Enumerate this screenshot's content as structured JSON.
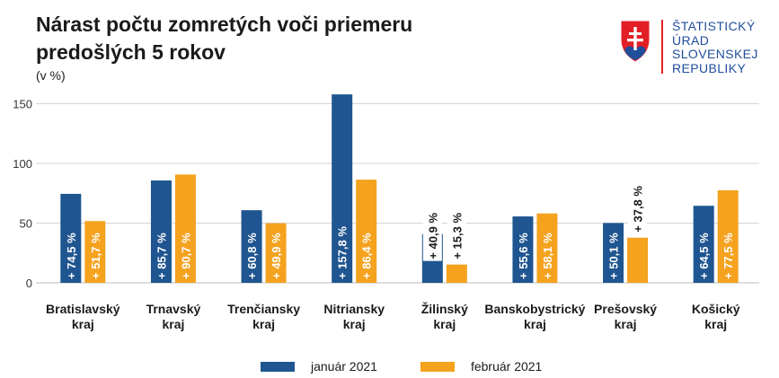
{
  "header": {
    "title_line1": "Nárast počtu zomretých voči priemeru",
    "title_line2": "predošlých 5 rokov",
    "unit": "(v %)"
  },
  "logo": {
    "line1": "ŠTATISTICKÝ",
    "line2": "ÚRAD",
    "line3": "SLOVENSKEJ",
    "line4": "REPUBLIKY",
    "icon": "slovak-coat-of-arms",
    "color": "#1f4e9a"
  },
  "chart_data": {
    "type": "bar",
    "categories": [
      [
        "Bratislavský",
        "kraj"
      ],
      [
        "Trnavský",
        "kraj"
      ],
      [
        "Trenčiansky",
        "kraj"
      ],
      [
        "Nitriansky",
        "kraj"
      ],
      [
        "Žilinský",
        "kraj"
      ],
      [
        "Banskobystrický",
        "kraj"
      ],
      [
        "Prešovský",
        "kraj"
      ],
      [
        "Košický",
        "kraj"
      ]
    ],
    "series": [
      {
        "name": "január 2021",
        "color": "#1f5590",
        "values": [
          74.5,
          85.7,
          60.8,
          157.8,
          40.9,
          55.6,
          50.1,
          64.5
        ],
        "labels": [
          "+ 74,5 %",
          "+ 85,7 %",
          "+ 60,8 %",
          "+ 157,8 %",
          "+ 40,9 %",
          "+ 55,6 %",
          "+ 50,1 %",
          "+ 64,5 %"
        ]
      },
      {
        "name": "február 2021",
        "color": "#f5a21f",
        "values": [
          51.7,
          90.7,
          49.9,
          86.4,
          15.3,
          58.1,
          37.8,
          77.5
        ],
        "labels": [
          "+ 51,7 %",
          "+ 90,7 %",
          "+ 49,9 %",
          "+ 86,4 %",
          "+ 15,3 %",
          "+ 58,1 %",
          "+ 37,8 %",
          "+ 77,5 %"
        ]
      }
    ],
    "yticks": [
      0,
      50,
      100,
      150
    ],
    "ylim": [
      0,
      165
    ],
    "grid": true,
    "legend": "bottom"
  }
}
